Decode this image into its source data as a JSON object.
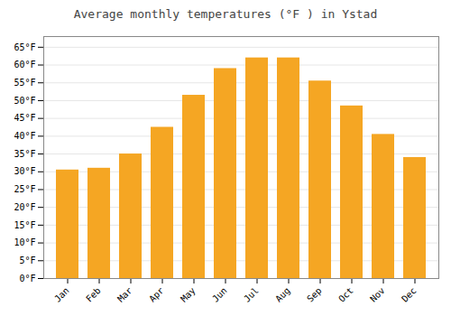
{
  "chart_data": {
    "type": "bar",
    "title": "Average monthly temperatures (°F ) in Ystad",
    "categories": [
      "Jan",
      "Feb",
      "Mar",
      "Apr",
      "May",
      "Jun",
      "Jul",
      "Aug",
      "Sep",
      "Oct",
      "Nov",
      "Dec"
    ],
    "values": [
      30.5,
      31.0,
      35.0,
      42.5,
      51.5,
      59.0,
      62.0,
      62.0,
      55.5,
      48.5,
      40.5,
      34.0
    ],
    "color": "#F5A623",
    "ylim": [
      0,
      68
    ],
    "yticks": [
      {
        "value": 0,
        "label": "0°F"
      },
      {
        "value": 5,
        "label": "5°F"
      },
      {
        "value": 10,
        "label": "10°F"
      },
      {
        "value": 15,
        "label": "15°F"
      },
      {
        "value": 20,
        "label": "20°F"
      },
      {
        "value": 25,
        "label": "25°F"
      },
      {
        "value": 30,
        "label": "30°F"
      },
      {
        "value": 35,
        "label": "35°F"
      },
      {
        "value": 40,
        "label": "40°F"
      },
      {
        "value": 45,
        "label": "45°F"
      },
      {
        "value": 50,
        "label": "50°F"
      },
      {
        "value": 55,
        "label": "55°F"
      },
      {
        "value": 60,
        "label": "60°F"
      },
      {
        "value": 65,
        "label": "65°F"
      }
    ],
    "grid": true
  }
}
